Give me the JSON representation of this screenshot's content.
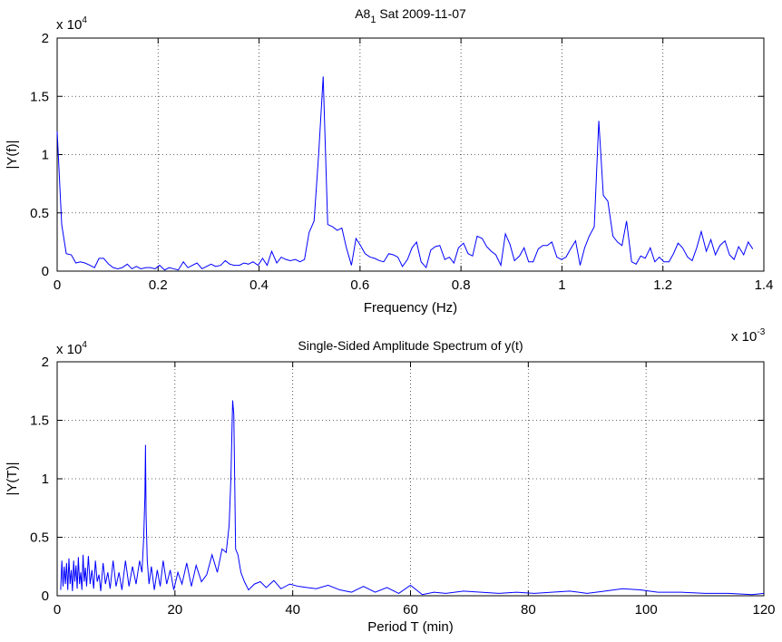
{
  "chart_data": [
    {
      "type": "line",
      "title_main": "A8",
      "title_sub": "1",
      "title_rest": " Sat 2009-11-07",
      "xlabel": "Frequency (Hz)",
      "ylabel": "|Y(f)|",
      "x_multiplier": "x 10",
      "x_multiplier_exp": "-3",
      "y_multiplier": "x 10",
      "y_multiplier_exp": "4",
      "xlim": [
        0,
        1.4
      ],
      "ylim": [
        0,
        2
      ],
      "xticks": [
        0,
        0.2,
        0.4,
        0.6,
        0.8,
        1,
        1.2,
        1.4
      ],
      "xtick_labels": [
        "0",
        "0.2",
        "0.4",
        "0.6",
        "0.8",
        "1",
        "1.2",
        "1.4"
      ],
      "yticks": [
        0,
        0.5,
        1,
        1.5,
        2
      ],
      "ytick_labels": [
        "0",
        "0.5",
        "1",
        "1.5",
        "2"
      ],
      "grid": true,
      "color": "#0000ff",
      "series": [
        {
          "x": [
            0,
            0.009,
            0.018,
            0.028,
            0.037,
            0.046,
            0.055,
            0.065,
            0.074,
            0.083,
            0.092,
            0.102,
            0.111,
            0.12,
            0.129,
            0.139,
            0.148,
            0.157,
            0.166,
            0.176,
            0.185,
            0.194,
            0.203,
            0.213,
            0.222,
            0.231,
            0.24,
            0.25,
            0.259,
            0.268,
            0.277,
            0.287,
            0.296,
            0.305,
            0.314,
            0.324,
            0.333,
            0.342,
            0.351,
            0.361,
            0.37,
            0.379,
            0.388,
            0.398,
            0.407,
            0.416,
            0.425,
            0.435,
            0.444,
            0.453,
            0.462,
            0.472,
            0.481,
            0.49,
            0.499,
            0.509,
            0.518,
            0.527,
            0.536,
            0.546,
            0.555,
            0.564,
            0.573,
            0.583,
            0.592,
            0.601,
            0.61,
            0.62,
            0.629,
            0.638,
            0.647,
            0.657,
            0.666,
            0.675,
            0.684,
            0.694,
            0.703,
            0.712,
            0.721,
            0.731,
            0.74,
            0.749,
            0.758,
            0.768,
            0.777,
            0.786,
            0.795,
            0.805,
            0.814,
            0.823,
            0.832,
            0.842,
            0.851,
            0.86,
            0.869,
            0.879,
            0.888,
            0.897,
            0.906,
            0.916,
            0.925,
            0.934,
            0.943,
            0.953,
            0.962,
            0.971,
            0.98,
            0.99,
            0.999,
            1.008,
            1.017,
            1.027,
            1.036,
            1.045,
            1.054,
            1.064,
            1.073,
            1.082,
            1.091,
            1.101,
            1.11,
            1.119,
            1.128,
            1.138,
            1.147,
            1.156,
            1.165,
            1.175,
            1.184,
            1.193,
            1.202,
            1.212,
            1.221,
            1.23,
            1.239,
            1.249,
            1.258,
            1.267,
            1.276,
            1.286,
            1.295,
            1.304,
            1.313,
            1.323,
            1.332,
            1.341,
            1.35,
            1.36,
            1.369,
            1.378
          ],
          "y": [
            1.2,
            0.4,
            0.15,
            0.14,
            0.07,
            0.08,
            0.07,
            0.05,
            0.03,
            0.11,
            0.11,
            0.06,
            0.03,
            0.02,
            0.03,
            0.06,
            0.02,
            0.04,
            0.02,
            0.03,
            0.03,
            0.02,
            0.05,
            0.01,
            0.03,
            0.02,
            0.01,
            0.08,
            0.03,
            0.05,
            0.07,
            0.02,
            0.04,
            0.06,
            0.04,
            0.05,
            0.09,
            0.06,
            0.05,
            0.05,
            0.07,
            0.06,
            0.08,
            0.05,
            0.11,
            0.05,
            0.17,
            0.07,
            0.12,
            0.1,
            0.09,
            0.1,
            0.08,
            0.1,
            0.33,
            0.43,
            1.0,
            1.67,
            0.4,
            0.38,
            0.35,
            0.37,
            0.2,
            0.05,
            0.28,
            0.22,
            0.15,
            0.12,
            0.11,
            0.09,
            0.08,
            0.15,
            0.14,
            0.12,
            0.04,
            0.1,
            0.2,
            0.25,
            0.08,
            0.03,
            0.18,
            0.21,
            0.22,
            0.1,
            0.12,
            0.07,
            0.2,
            0.24,
            0.15,
            0.13,
            0.3,
            0.28,
            0.21,
            0.17,
            0.14,
            0.05,
            0.32,
            0.23,
            0.09,
            0.13,
            0.2,
            0.08,
            0.08,
            0.19,
            0.22,
            0.22,
            0.25,
            0.12,
            0.1,
            0.12,
            0.19,
            0.26,
            0.05,
            0.2,
            0.3,
            0.38,
            1.29,
            0.65,
            0.6,
            0.3,
            0.25,
            0.22,
            0.43,
            0.08,
            0.06,
            0.13,
            0.11,
            0.2,
            0.08,
            0.12,
            0.08,
            0.08,
            0.15,
            0.24,
            0.2,
            0.12,
            0.09,
            0.2,
            0.34,
            0.17,
            0.27,
            0.14,
            0.22,
            0.26,
            0.14,
            0.1,
            0.21,
            0.14,
            0.25,
            0.19
          ]
        }
      ]
    },
    {
      "type": "line",
      "title": "Single-Sided Amplitude Spectrum of y(t)",
      "xlabel": "Period T (min)",
      "ylabel": "|Y(T)|",
      "y_multiplier": "x 10",
      "y_multiplier_exp": "4",
      "xlim": [
        0,
        120
      ],
      "ylim": [
        0,
        2
      ],
      "xticks": [
        0,
        20,
        40,
        60,
        80,
        100,
        120
      ],
      "xtick_labels": [
        "0",
        "20",
        "40",
        "60",
        "80",
        "100",
        "120"
      ],
      "yticks": [
        0,
        0.5,
        1,
        1.5,
        2
      ],
      "ytick_labels": [
        "0",
        "0.5",
        "1",
        "1.5",
        "2"
      ],
      "grid": true,
      "color": "#0000ff",
      "series": [
        {
          "x": [
            0.6,
            0.8,
            1.0,
            1.2,
            1.4,
            1.6,
            1.8,
            2.0,
            2.2,
            2.4,
            2.6,
            2.8,
            3.0,
            3.2,
            3.4,
            3.6,
            3.8,
            4.0,
            4.2,
            4.4,
            4.6,
            4.8,
            5.0,
            5.3,
            5.6,
            5.9,
            6.2,
            6.5,
            6.8,
            7.1,
            7.4,
            7.8,
            8.2,
            8.6,
            9.0,
            9.5,
            10.0,
            10.5,
            11.0,
            11.6,
            12.2,
            12.8,
            13.4,
            14.0,
            14.4,
            14.7,
            14.9,
            15.0,
            15.1,
            15.3,
            15.6,
            16.0,
            16.5,
            17.0,
            17.5,
            18.0,
            18.6,
            19.2,
            19.8,
            20.5,
            21.2,
            22.0,
            22.8,
            23.6,
            24.5,
            25.4,
            26.3,
            27.2,
            28.0,
            28.7,
            29.2,
            29.5,
            29.8,
            30.0,
            30.3,
            30.7,
            31.2,
            31.8,
            32.5,
            33.5,
            34.5,
            35.5,
            36.8,
            38.0,
            39.5,
            41.0,
            42.5,
            44.0,
            46.0,
            48.0,
            50.0,
            52.0,
            54.0,
            56.0,
            58.0,
            60.0,
            62.0,
            64.0,
            66.0,
            69.0,
            72.0,
            75.0,
            78.0,
            81.0,
            84.0,
            87.0,
            90.0,
            93.0,
            96.0,
            99.0,
            102.0,
            106.0,
            110.0,
            114.0,
            118.0,
            120.0
          ],
          "y": [
            0.05,
            0.3,
            0.08,
            0.25,
            0.1,
            0.28,
            0.05,
            0.32,
            0.1,
            0.22,
            0.04,
            0.3,
            0.12,
            0.26,
            0.06,
            0.33,
            0.1,
            0.2,
            0.05,
            0.35,
            0.12,
            0.24,
            0.08,
            0.34,
            0.1,
            0.22,
            0.06,
            0.3,
            0.12,
            0.18,
            0.04,
            0.28,
            0.1,
            0.2,
            0.06,
            0.3,
            0.08,
            0.2,
            0.05,
            0.3,
            0.08,
            0.25,
            0.1,
            0.3,
            0.2,
            0.5,
            0.85,
            1.29,
            0.7,
            0.3,
            0.1,
            0.25,
            0.05,
            0.22,
            0.08,
            0.3,
            0.1,
            0.22,
            0.05,
            0.2,
            0.1,
            0.28,
            0.08,
            0.26,
            0.12,
            0.18,
            0.35,
            0.2,
            0.4,
            0.37,
            0.6,
            1.0,
            1.67,
            1.55,
            0.4,
            0.35,
            0.2,
            0.12,
            0.05,
            0.1,
            0.12,
            0.07,
            0.13,
            0.06,
            0.1,
            0.08,
            0.07,
            0.06,
            0.09,
            0.05,
            0.03,
            0.08,
            0.03,
            0.07,
            0.02,
            0.09,
            0.01,
            0.03,
            0.02,
            0.04,
            0.03,
            0.02,
            0.03,
            0.02,
            0.03,
            0.04,
            0.02,
            0.04,
            0.06,
            0.05,
            0.03,
            0.03,
            0.02,
            0.02,
            0.01,
            0.02
          ]
        }
      ]
    }
  ]
}
